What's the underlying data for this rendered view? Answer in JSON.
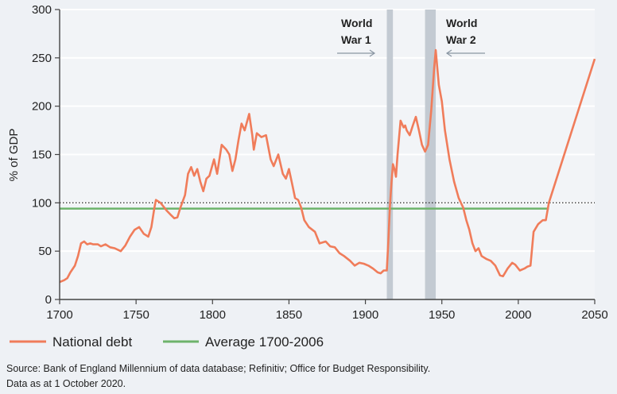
{
  "chart_data": {
    "type": "line",
    "title": "",
    "xlabel": "",
    "ylabel": "% of GDP",
    "xlim": [
      1700,
      2050
    ],
    "ylim": [
      0,
      300
    ],
    "x_ticks": [
      1700,
      1750,
      1800,
      1850,
      1900,
      1950,
      2000,
      2050
    ],
    "y_ticks": [
      0,
      50,
      100,
      150,
      200,
      250,
      300
    ],
    "grid": true,
    "legend_placement": "bottom",
    "colors": {
      "national_debt": "#f07c5a",
      "average": "#6db36b",
      "war_band": "#c3cad2",
      "reference_line": "#333333",
      "background": "#eef1f5"
    },
    "series": [
      {
        "name": "National debt",
        "x": [
          1700,
          1703,
          1705,
          1707,
          1710,
          1712,
          1714,
          1716,
          1718,
          1720,
          1722,
          1725,
          1727,
          1730,
          1733,
          1736,
          1740,
          1743,
          1746,
          1749,
          1752,
          1755,
          1758,
          1760,
          1762,
          1763,
          1766,
          1770,
          1773,
          1775,
          1777,
          1779,
          1782,
          1784,
          1786,
          1788,
          1790,
          1792,
          1794,
          1796,
          1798,
          1801,
          1803,
          1806,
          1809,
          1811,
          1813,
          1815,
          1817,
          1819,
          1821,
          1824,
          1826,
          1827,
          1829,
          1832,
          1835,
          1838,
          1840,
          1843,
          1846,
          1848,
          1850,
          1852,
          1854,
          1856,
          1858,
          1860,
          1863,
          1867,
          1870,
          1874,
          1877,
          1880,
          1883,
          1886,
          1890,
          1893,
          1896,
          1899,
          1902,
          1905,
          1908,
          1910,
          1912,
          1914,
          1915,
          1916,
          1917,
          1918,
          1919,
          1920,
          1921,
          1923,
          1925,
          1926,
          1927,
          1929,
          1931,
          1933,
          1935,
          1937,
          1939,
          1941,
          1943,
          1945,
          1946,
          1948,
          1950,
          1952,
          1955,
          1958,
          1961,
          1964,
          1966,
          1968,
          1970,
          1972,
          1974,
          1976,
          1979,
          1982,
          1985,
          1988,
          1990,
          1993,
          1996,
          1998,
          2001,
          2004,
          2006,
          2008,
          2010,
          2013,
          2016,
          2018,
          2020,
          2050
        ],
        "values": [
          18,
          20,
          22,
          28,
          35,
          45,
          58,
          60,
          57,
          58,
          57,
          57,
          55,
          57,
          54,
          53,
          50,
          56,
          65,
          72,
          75,
          68,
          65,
          75,
          95,
          103,
          100,
          92,
          87,
          84,
          85,
          95,
          108,
          130,
          137,
          128,
          135,
          122,
          112,
          125,
          128,
          145,
          130,
          160,
          155,
          150,
          133,
          145,
          165,
          182,
          175,
          192,
          170,
          155,
          172,
          168,
          170,
          145,
          138,
          150,
          130,
          125,
          135,
          120,
          105,
          103,
          95,
          82,
          75,
          70,
          58,
          60,
          55,
          54,
          48,
          45,
          40,
          35,
          38,
          37,
          35,
          32,
          28,
          27,
          30,
          30,
          60,
          95,
          120,
          140,
          135,
          127,
          150,
          185,
          178,
          180,
          175,
          170,
          180,
          189,
          175,
          160,
          153,
          160,
          195,
          240,
          258,
          222,
          205,
          175,
          145,
          122,
          105,
          95,
          82,
          72,
          58,
          50,
          53,
          45,
          42,
          40,
          35,
          25,
          24,
          32,
          38,
          36,
          30,
          32,
          34,
          35,
          70,
          78,
          82,
          82,
          100,
          249
        ]
      },
      {
        "name": "Average 1700-2006",
        "x": [
          1700,
          2020
        ],
        "values": [
          94,
          94
        ]
      }
    ],
    "reference_line": {
      "y": 100
    },
    "shaded_periods": [
      {
        "label_line1": "World",
        "label_line2": "War 1",
        "start": 1914,
        "end": 1918
      },
      {
        "label_line1": "World",
        "label_line2": "War 2",
        "start": 1939,
        "end": 1946
      }
    ],
    "source_line1": "Source: Bank of England Millennium of data database; Refinitiv; Office for Budget Responsibility.",
    "source_line2": "Data as at 1 October 2020."
  }
}
